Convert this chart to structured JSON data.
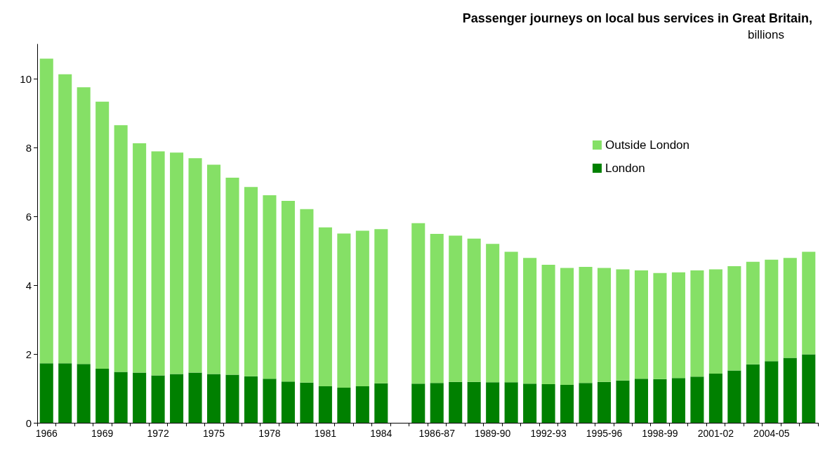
{
  "chart_data": {
    "type": "bar",
    "title": "Passenger journeys on local bus services in Great Britain,",
    "subtitle": "billions",
    "categories": [
      "1966",
      null,
      null,
      "1969",
      null,
      null,
      "1972",
      null,
      null,
      "1975",
      null,
      null,
      "1978",
      null,
      null,
      "1981",
      null,
      null,
      "1984",
      null,
      null,
      "1986-87",
      null,
      null,
      "1989-90",
      null,
      null,
      "1992-93",
      null,
      null,
      "1995-96",
      null,
      null,
      "1998-99",
      null,
      null,
      "2001-02",
      null,
      null,
      "2004-05",
      null,
      null
    ],
    "series": [
      {
        "name": "London",
        "color": "#008000",
        "values": [
          1.73,
          1.73,
          1.71,
          1.57,
          1.48,
          1.46,
          1.38,
          1.42,
          1.46,
          1.42,
          1.4,
          1.35,
          1.28,
          1.2,
          1.17,
          1.06,
          1.02,
          1.06,
          1.15,
          null,
          1.14,
          1.16,
          1.19,
          1.19,
          1.18,
          1.18,
          1.14,
          1.12,
          1.1,
          1.16,
          1.19,
          1.23,
          1.28,
          1.27,
          1.3,
          1.34,
          1.43,
          1.52,
          1.7,
          1.79,
          1.89,
          1.99
        ]
      },
      {
        "name": "Outside London",
        "color": "#85e066",
        "values": [
          8.85,
          8.4,
          8.04,
          7.76,
          7.17,
          6.66,
          6.51,
          6.43,
          6.23,
          6.08,
          5.72,
          5.5,
          5.33,
          5.25,
          5.04,
          4.62,
          4.48,
          4.52,
          4.48,
          null,
          4.66,
          4.33,
          4.25,
          4.16,
          4.02,
          3.79,
          3.65,
          3.47,
          3.4,
          3.37,
          3.31,
          3.23,
          3.15,
          3.08,
          3.07,
          3.09,
          3.03,
          3.03,
          2.98,
          2.95,
          2.9,
          2.98
        ]
      }
    ],
    "stacked": true,
    "ylim": [
      0,
      11
    ],
    "yticks": [
      0,
      2,
      4,
      6,
      8,
      10
    ],
    "grid": false,
    "legend": "top right"
  }
}
